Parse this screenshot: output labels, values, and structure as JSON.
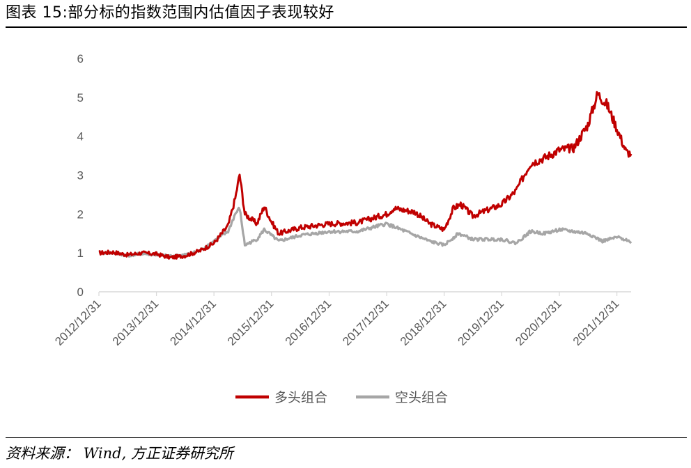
{
  "header": {
    "title": "图表 15:部分标的指数范围内估值因子表现较好"
  },
  "footer": {
    "source": "资料来源： Wind, 方正证券研究所"
  },
  "colors": {
    "long": "#C00000",
    "short": "#A6A6A6",
    "axis": "#D9D9D9",
    "text": "#595959"
  },
  "chart_data": {
    "type": "line",
    "title": "",
    "xlabel": "",
    "ylabel": "",
    "ylim": [
      0,
      6
    ],
    "yticks": [
      "0",
      "1",
      "2",
      "3",
      "4",
      "5",
      "6"
    ],
    "xticks": [
      "2012/12/31",
      "2013/12/31",
      "2014/12/31",
      "2015/12/31",
      "2016/12/31",
      "2017/12/31",
      "2018/12/31",
      "2019/12/31",
      "2020/12/31",
      "2021/12/31"
    ],
    "grid": false,
    "legend_position": "bottom",
    "series": [
      {
        "name": "多头组合",
        "color": "#C00000",
        "points": [
          [
            "2012/12/31",
            1.0
          ],
          [
            "2013/03/31",
            1.02
          ],
          [
            "2013/06/30",
            0.95
          ],
          [
            "2013/09/30",
            1.0
          ],
          [
            "2013/12/31",
            0.97
          ],
          [
            "2014/03/31",
            0.88
          ],
          [
            "2014/06/30",
            0.93
          ],
          [
            "2014/09/30",
            1.05
          ],
          [
            "2014/12/31",
            1.25
          ],
          [
            "2015/03/31",
            1.7
          ],
          [
            "2015/05/15",
            2.4
          ],
          [
            "2015/06/12",
            3.02
          ],
          [
            "2015/07/15",
            2.0
          ],
          [
            "2015/09/30",
            1.75
          ],
          [
            "2015/11/15",
            2.2
          ],
          [
            "2015/12/31",
            1.8
          ],
          [
            "2016/02/15",
            1.5
          ],
          [
            "2016/06/30",
            1.65
          ],
          [
            "2016/12/31",
            1.75
          ],
          [
            "2017/06/30",
            1.78
          ],
          [
            "2017/12/31",
            2.0
          ],
          [
            "2018/02/15",
            2.15
          ],
          [
            "2018/06/30",
            2.05
          ],
          [
            "2018/09/30",
            1.75
          ],
          [
            "2018/12/31",
            1.6
          ],
          [
            "2019/02/28",
            2.15
          ],
          [
            "2019/04/15",
            2.25
          ],
          [
            "2019/06/30",
            1.95
          ],
          [
            "2019/09/30",
            2.1
          ],
          [
            "2019/12/31",
            2.25
          ],
          [
            "2020/03/31",
            2.6
          ],
          [
            "2020/06/30",
            3.3
          ],
          [
            "2020/09/30",
            3.45
          ],
          [
            "2020/12/31",
            3.65
          ],
          [
            "2021/03/31",
            3.7
          ],
          [
            "2021/06/30",
            4.3
          ],
          [
            "2021/08/31",
            5.1
          ],
          [
            "2021/10/31",
            4.8
          ],
          [
            "2021/12/31",
            4.2
          ],
          [
            "2022/02/28",
            3.6
          ],
          [
            "2022/03/31",
            3.55
          ]
        ]
      },
      {
        "name": "空头组合",
        "color": "#A6A6A6",
        "points": [
          [
            "2012/12/31",
            1.0
          ],
          [
            "2013/03/31",
            1.0
          ],
          [
            "2013/06/30",
            0.93
          ],
          [
            "2013/09/30",
            0.98
          ],
          [
            "2013/12/31",
            0.95
          ],
          [
            "2014/03/31",
            0.92
          ],
          [
            "2014/06/30",
            0.95
          ],
          [
            "2014/09/30",
            1.05
          ],
          [
            "2014/12/31",
            1.3
          ],
          [
            "2015/03/31",
            1.55
          ],
          [
            "2015/05/15",
            2.0
          ],
          [
            "2015/06/12",
            2.15
          ],
          [
            "2015/07/15",
            1.2
          ],
          [
            "2015/09/30",
            1.35
          ],
          [
            "2015/11/15",
            1.6
          ],
          [
            "2015/12/31",
            1.45
          ],
          [
            "2016/02/15",
            1.3
          ],
          [
            "2016/06/30",
            1.45
          ],
          [
            "2016/12/31",
            1.55
          ],
          [
            "2017/06/30",
            1.55
          ],
          [
            "2017/12/31",
            1.75
          ],
          [
            "2018/03/31",
            1.6
          ],
          [
            "2018/06/30",
            1.45
          ],
          [
            "2018/09/30",
            1.3
          ],
          [
            "2018/12/31",
            1.2
          ],
          [
            "2019/03/31",
            1.5
          ],
          [
            "2019/06/30",
            1.35
          ],
          [
            "2019/12/31",
            1.35
          ],
          [
            "2020/03/31",
            1.25
          ],
          [
            "2020/06/30",
            1.55
          ],
          [
            "2020/09/30",
            1.5
          ],
          [
            "2020/12/31",
            1.6
          ],
          [
            "2021/03/31",
            1.55
          ],
          [
            "2021/06/30",
            1.5
          ],
          [
            "2021/09/30",
            1.3
          ],
          [
            "2021/12/31",
            1.4
          ],
          [
            "2022/02/28",
            1.35
          ],
          [
            "2022/03/31",
            1.25
          ]
        ]
      }
    ]
  }
}
